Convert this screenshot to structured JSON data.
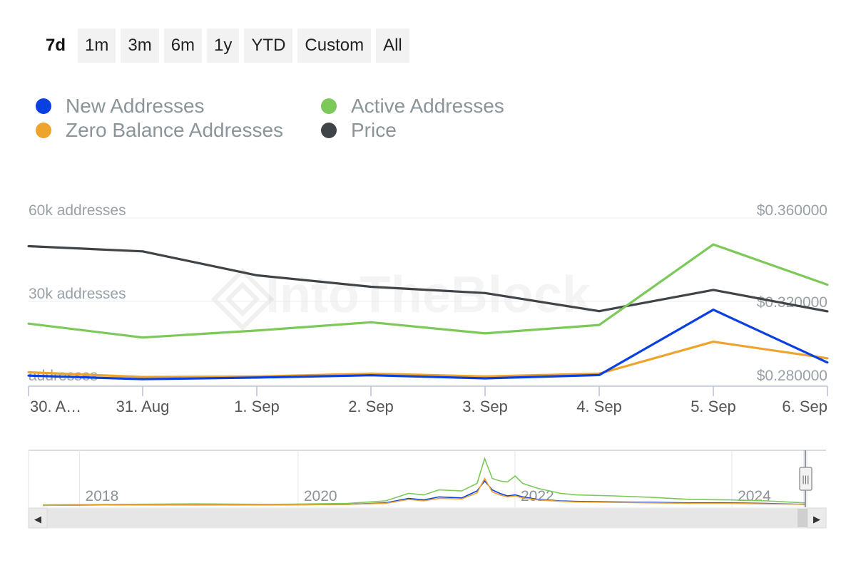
{
  "range_buttons": [
    "7d",
    "1m",
    "3m",
    "6m",
    "1y",
    "YTD",
    "Custom",
    "All"
  ],
  "active_range": "7d",
  "legend": [
    {
      "label": "New Addresses",
      "color": "#0a3fe0"
    },
    {
      "label": "Active Addresses",
      "color": "#7cc95a"
    },
    {
      "label": "Zero Balance Addresses",
      "color": "#eea42c"
    },
    {
      "label": "Price",
      "color": "#404448"
    }
  ],
  "watermark": "IntoTheBlock",
  "chart_data": {
    "type": "line",
    "categories": [
      "30. A…",
      "31. Aug",
      "1. Sep",
      "2. Sep",
      "3. Sep",
      "4. Sep",
      "5. Sep",
      "6. Sep"
    ],
    "left_axis": {
      "ticks": [
        "60k addresses",
        "30k addresses",
        "addresses"
      ],
      "range": [
        0,
        60000
      ]
    },
    "right_axis": {
      "ticks": [
        "$0.360000",
        "$0.320000",
        "$0.280000"
      ],
      "range": [
        0.28,
        0.36
      ]
    },
    "series": [
      {
        "name": "New Addresses",
        "axis": "left",
        "color": "#0a3fe0",
        "values": [
          3300,
          2000,
          2600,
          3400,
          2300,
          3500,
          27000,
          8000
        ]
      },
      {
        "name": "Active Addresses",
        "axis": "left",
        "color": "#7cc95a",
        "values": [
          22000,
          17000,
          19500,
          22500,
          18500,
          21500,
          50500,
          36000
        ]
      },
      {
        "name": "Zero Balance Addresses",
        "axis": "left",
        "color": "#eea42c",
        "values": [
          4500,
          2800,
          3000,
          4000,
          3000,
          4000,
          15500,
          9500
        ]
      },
      {
        "name": "Price",
        "axis": "right",
        "color": "#404448",
        "values": [
          0.3465,
          0.344,
          0.3325,
          0.327,
          0.324,
          0.3153,
          0.3255,
          0.3152
        ]
      }
    ]
  },
  "navigator": {
    "year_labels": [
      "2018",
      "2020",
      "2022",
      "2024"
    ],
    "year_positions": [
      0.064,
      0.338,
      0.61,
      0.882
    ],
    "handle_glyph": "|||",
    "left_arrow": "◀",
    "right_arrow": "▶",
    "overview": {
      "x": [
        0,
        0.1,
        0.2,
        0.3,
        0.4,
        0.45,
        0.48,
        0.5,
        0.52,
        0.55,
        0.57,
        0.58,
        0.59,
        0.6,
        0.61,
        0.62,
        0.63,
        0.65,
        0.68,
        0.7,
        0.75,
        0.8,
        0.85,
        0.9,
        0.95,
        1.0
      ],
      "active": [
        0.02,
        0.03,
        0.04,
        0.03,
        0.05,
        0.1,
        0.25,
        0.22,
        0.32,
        0.3,
        0.45,
        0.95,
        0.55,
        0.5,
        0.48,
        0.6,
        0.45,
        0.35,
        0.25,
        0.22,
        0.2,
        0.17,
        0.13,
        0.12,
        0.1,
        0.06
      ],
      "new": [
        0.01,
        0.02,
        0.02,
        0.02,
        0.03,
        0.06,
        0.15,
        0.12,
        0.18,
        0.16,
        0.3,
        0.5,
        0.32,
        0.25,
        0.2,
        0.22,
        0.18,
        0.13,
        0.1,
        0.09,
        0.08,
        0.07,
        0.06,
        0.06,
        0.05,
        0.03
      ],
      "zero": [
        0.01,
        0.02,
        0.02,
        0.02,
        0.03,
        0.05,
        0.13,
        0.1,
        0.15,
        0.14,
        0.26,
        0.55,
        0.28,
        0.22,
        0.18,
        0.2,
        0.16,
        0.12,
        0.09,
        0.08,
        0.07,
        0.06,
        0.05,
        0.05,
        0.04,
        0.03
      ]
    }
  }
}
